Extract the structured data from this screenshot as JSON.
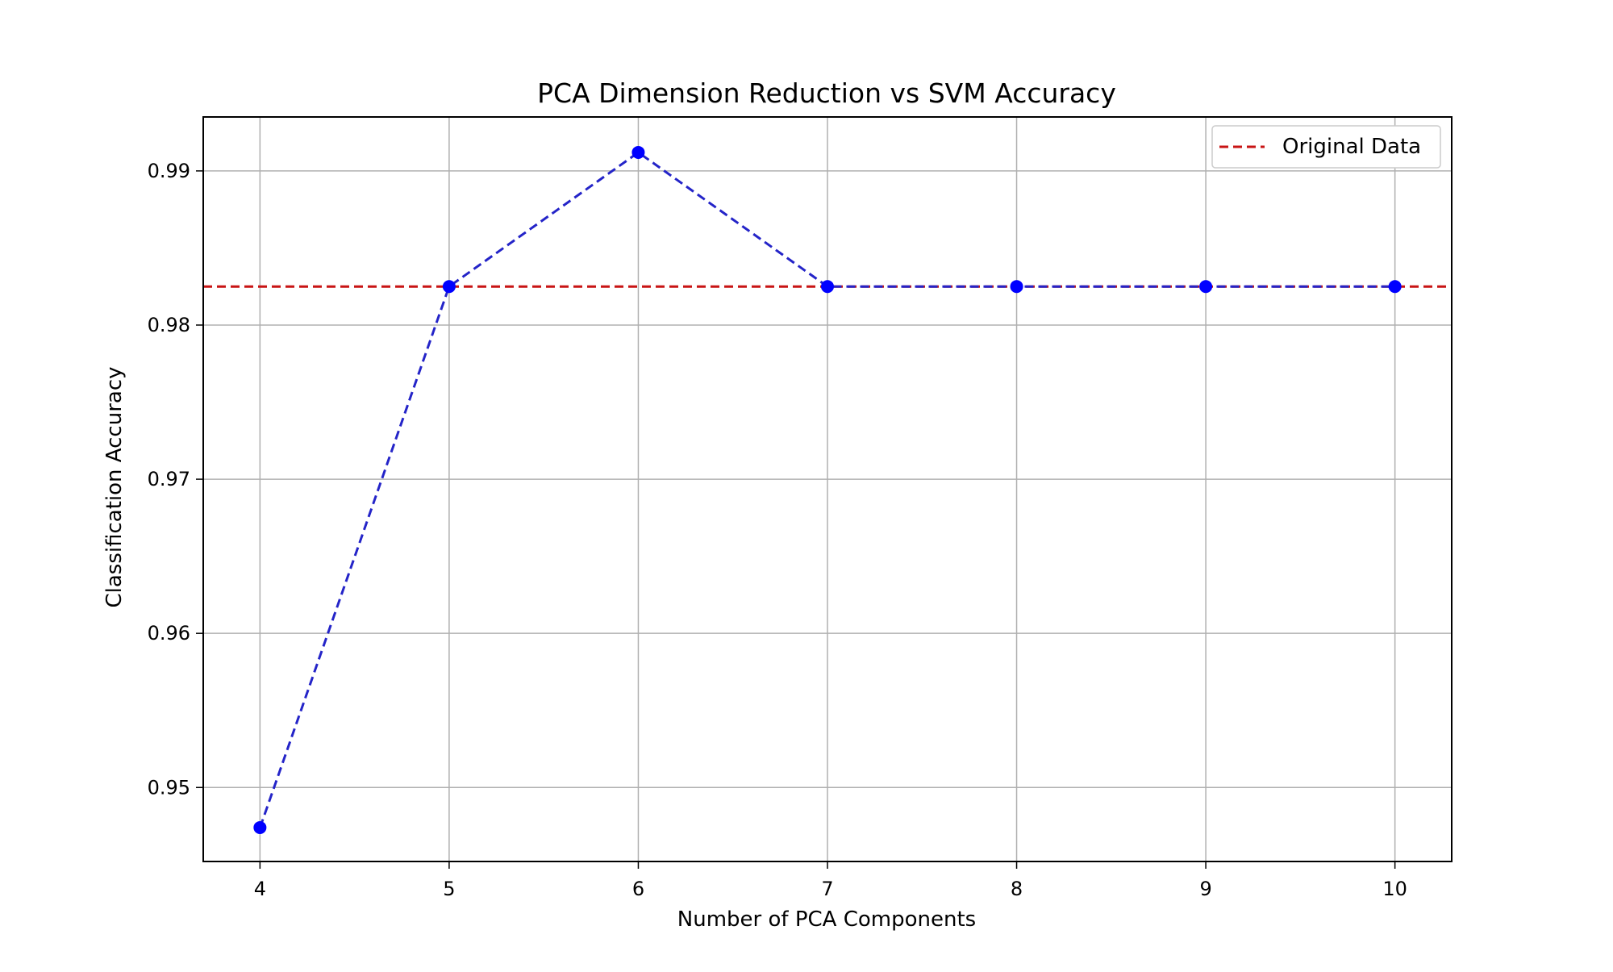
{
  "chart_data": {
    "type": "line",
    "title": "PCA Dimension Reduction vs SVM Accuracy",
    "xlabel": "Number of PCA Components",
    "ylabel": "Classification Accuracy",
    "xlim": [
      3.7,
      10.3
    ],
    "ylim": [
      0.9452,
      0.9935
    ],
    "x_ticks": [
      "4",
      "5",
      "6",
      "7",
      "8",
      "9",
      "10"
    ],
    "y_ticks": [
      "0.95",
      "0.96",
      "0.97",
      "0.98",
      "0.99"
    ],
    "grid": true,
    "legend_position": "top-right",
    "series": [
      {
        "x": [
          4,
          5,
          6,
          7,
          8,
          9,
          10
        ],
        "values": [
          0.9474,
          0.9825,
          0.9912,
          0.9825,
          0.9825,
          0.9825,
          0.9825
        ],
        "color": "#2424c8",
        "marker_color": "#0000ff",
        "line_style": "dashed",
        "marker": "circle"
      }
    ],
    "reference_lines": [
      {
        "name": "Original Data",
        "y": 0.9825,
        "color": "#c81414",
        "line_style": "dashed"
      }
    ]
  }
}
